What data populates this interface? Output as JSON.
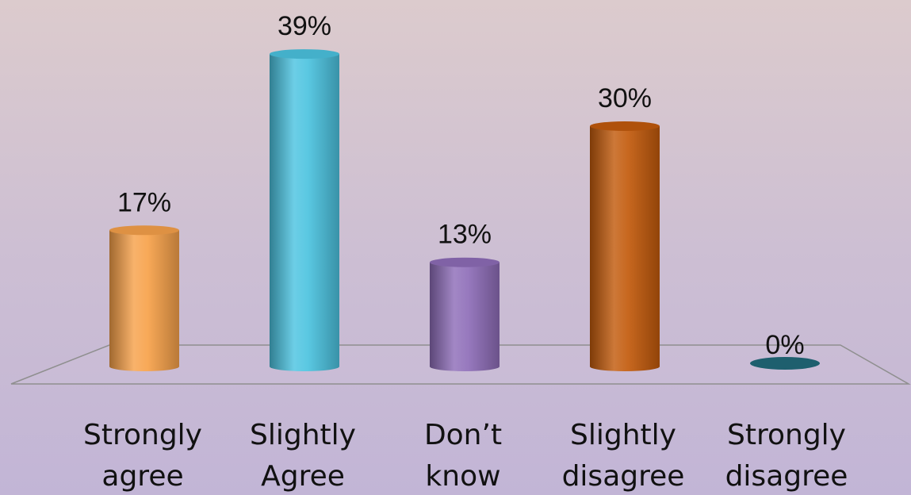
{
  "chart_data": {
    "type": "bar",
    "categories": [
      [
        "Strongly",
        "agree"
      ],
      [
        "Slightly",
        "Agree"
      ],
      [
        "Don’t",
        "know"
      ],
      [
        "Slightly",
        "disagree"
      ],
      [
        "Strongly",
        "disagree"
      ]
    ],
    "values": [
      17,
      39,
      13,
      30,
      0
    ],
    "value_labels": [
      "17%",
      "39%",
      "13%",
      "30%",
      "0%"
    ],
    "unit": "%",
    "colors": [
      "#f7a14a",
      "#4cc3e0",
      "#8e6db8",
      "#c25a0c",
      "#1e5f6e"
    ],
    "ylim": [
      0,
      45
    ],
    "style": "3d-cylinder",
    "grid": false,
    "legend": "none"
  }
}
